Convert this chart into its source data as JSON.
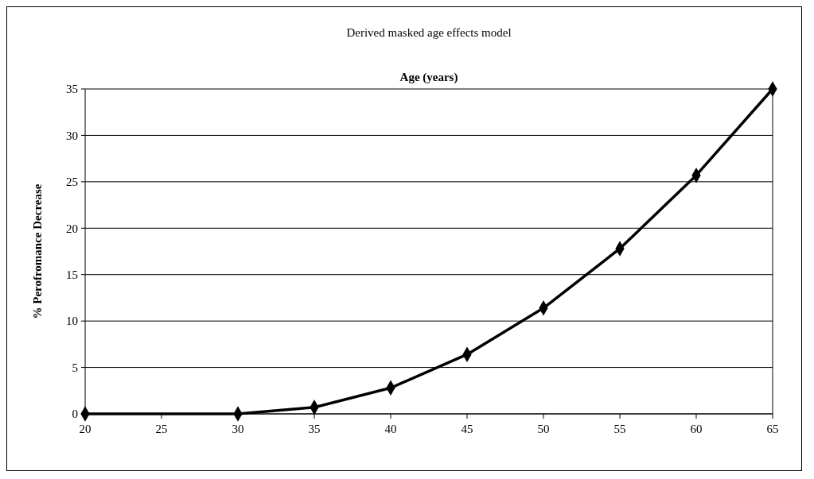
{
  "chart_data": {
    "type": "line",
    "title": "Derived masked age effects model",
    "xlabel": "Age (years)",
    "ylabel": "% Perofromance Decrease",
    "x": [
      20,
      30,
      35,
      40,
      45,
      50,
      55,
      60,
      65
    ],
    "series": [
      {
        "color": "#000000",
        "values": [
          0,
          0,
          0.7,
          2.8,
          6.4,
          11.4,
          17.8,
          25.7,
          35
        ]
      }
    ],
    "xlim": [
      20,
      65
    ],
    "xticks": [
      20,
      25,
      30,
      35,
      40,
      45,
      50,
      55,
      60,
      65
    ],
    "ylim": [
      0,
      35
    ],
    "yticks": [
      0,
      5,
      10,
      15,
      20,
      25,
      30,
      35
    ],
    "grid": "y",
    "marker": "diamond",
    "line_style": "solid"
  }
}
